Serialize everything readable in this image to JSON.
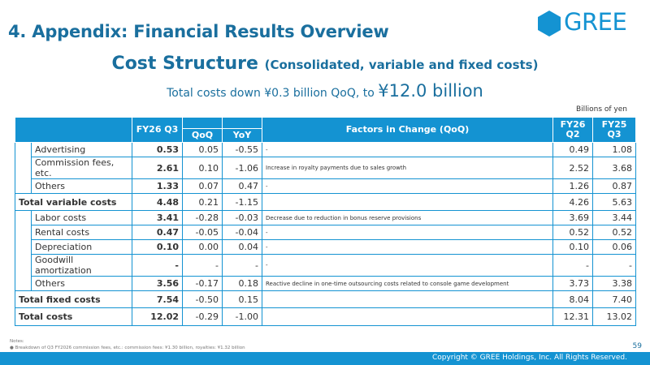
{
  "header": {
    "page_title": "4. Appendix: Financial Results Overview",
    "logo_text": "GREE"
  },
  "title": {
    "main": "Cost Structure",
    "sub": "(Consolidated, variable and fixed costs)"
  },
  "summary": {
    "text": "Total costs down ¥0.3 billion QoQ, to",
    "value": "¥12.0 billion"
  },
  "units": "Billions of yen",
  "table": {
    "headers": {
      "fy26q3": "FY26 Q3",
      "qoq": "QoQ",
      "yoy": "YoY",
      "factors": "Factors in Change (QoQ)",
      "fy26q2": "FY26 Q2",
      "fy25q3": "FY25 Q3"
    },
    "variable_rows": [
      {
        "label": "Advertising",
        "q3": "0.53",
        "qoq": "0.05",
        "yoy": "-0.55",
        "factor": "-",
        "q2": "0.49",
        "fy25": "1.08"
      },
      {
        "label": "Commission fees, etc.",
        "q3": "2.61",
        "qoq": "0.10",
        "yoy": "-1.06",
        "factor": "Increase in royalty payments due to sales growth",
        "q2": "2.52",
        "fy25": "3.68"
      },
      {
        "label": "Others",
        "q3": "1.33",
        "qoq": "0.07",
        "yoy": "0.47",
        "factor": "-",
        "q2": "1.26",
        "fy25": "0.87"
      }
    ],
    "variable_total": {
      "label": "Total variable costs",
      "q3": "4.48",
      "qoq": "0.21",
      "yoy": "-1.15",
      "factor": "",
      "q2": "4.26",
      "fy25": "5.63"
    },
    "fixed_rows": [
      {
        "label": "Labor costs",
        "q3": "3.41",
        "qoq": "-0.28",
        "yoy": "-0.03",
        "factor": "Decrease due to reduction in bonus reserve provisions",
        "q2": "3.69",
        "fy25": "3.44"
      },
      {
        "label": "Rental costs",
        "q3": "0.47",
        "qoq": "-0.05",
        "yoy": "-0.04",
        "factor": "-",
        "q2": "0.52",
        "fy25": "0.52"
      },
      {
        "label": "Depreciation",
        "q3": "0.10",
        "qoq": "0.00",
        "yoy": "0.04",
        "factor": "-",
        "q2": "0.10",
        "fy25": "0.06"
      },
      {
        "label": "Goodwill amortization",
        "q3": "-",
        "qoq": "-",
        "yoy": "-",
        "factor": "-",
        "q2": "-",
        "fy25": "-"
      },
      {
        "label": "Others",
        "q3": "3.56",
        "qoq": "-0.17",
        "yoy": "0.18",
        "factor": "Reactive decline in one-time outsourcing costs related to console game development",
        "q2": "3.73",
        "fy25": "3.38"
      }
    ],
    "fixed_total": {
      "label": "Total fixed costs",
      "q3": "7.54",
      "qoq": "-0.50",
      "yoy": "0.15",
      "factor": "",
      "q2": "8.04",
      "fy25": "7.40"
    },
    "grand_total": {
      "label": "Total costs",
      "q3": "12.02",
      "qoq": "-0.29",
      "yoy": "-1.00",
      "factor": "",
      "q2": "12.31",
      "fy25": "13.02"
    }
  },
  "notes": {
    "heading": "Notes:",
    "items": [
      "Breakdown of Q3 FY2026 commission fees, etc.: commission fees: ¥1.30 billion, royalties: ¥1.32 billion"
    ]
  },
  "page_number": "59",
  "footer": {
    "copyright": "Copyright © GREE Holdings, Inc. All Rights Reserved."
  },
  "colors": {
    "brand_blue": "#1493d2",
    "heading_blue": "#1a6f9e"
  }
}
